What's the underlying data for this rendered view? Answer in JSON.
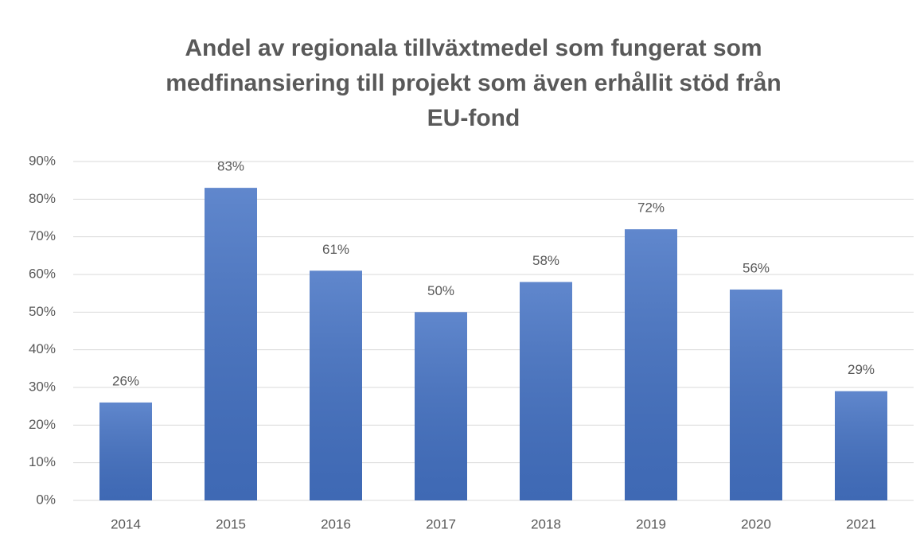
{
  "chart_data": {
    "type": "bar",
    "title": [
      "Andel av regionala tillväxtmedel som fungerat som",
      "medfinansiering till projekt som även erhållit stöd från",
      "EU-fond"
    ],
    "categories": [
      "2014",
      "2015",
      "2016",
      "2017",
      "2018",
      "2019",
      "2020",
      "2021"
    ],
    "values": [
      26,
      83,
      61,
      50,
      58,
      72,
      56,
      29
    ],
    "value_labels": [
      "26%",
      "83%",
      "61%",
      "50%",
      "58%",
      "72%",
      "56%",
      "29%"
    ],
    "color": "#4472c4",
    "ylim": [
      0,
      90
    ],
    "yticks": [
      {
        "value": 0,
        "label": "0%"
      },
      {
        "value": 10,
        "label": "10%"
      },
      {
        "value": 20,
        "label": "20%"
      },
      {
        "value": 30,
        "label": "30%"
      },
      {
        "value": 40,
        "label": "40%"
      },
      {
        "value": 50,
        "label": "50%"
      },
      {
        "value": 60,
        "label": "60%"
      },
      {
        "value": 70,
        "label": "70%"
      },
      {
        "value": 80,
        "label": "80%"
      },
      {
        "value": 90,
        "label": "90%"
      }
    ],
    "grid": true
  }
}
